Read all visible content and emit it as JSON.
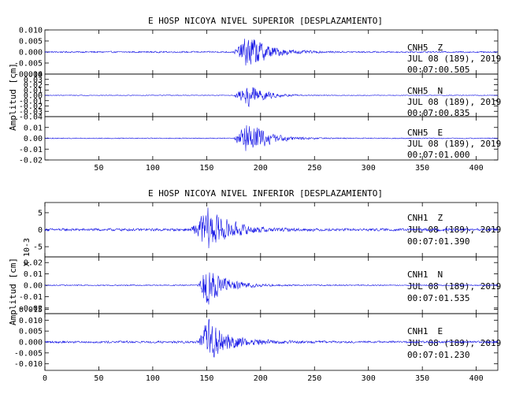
{
  "chart_data": [
    {
      "type": "line",
      "title": "E HOSP NICOYA NIVEL SUPERIOR [DESPLAZAMIENTO]",
      "ylabel": "Amplitud [cm]",
      "xlim": [
        0,
        420
      ],
      "x_ticks": [
        "50",
        "100",
        "150",
        "200",
        "250",
        "300",
        "350",
        "400"
      ],
      "colors": {
        "trace": "#1515e6",
        "axes": "#000000"
      },
      "panels": [
        {
          "name": "top-z",
          "ylim": [
            -0.01,
            0.01
          ],
          "y_ticks": [
            "0.010",
            "0.005",
            "0.000",
            "-0.005",
            "-0.010"
          ],
          "station": "CNH5",
          "component": "Z",
          "date": "JUL 08 (189), 2019",
          "time": "00:07:00.505",
          "event_x": 175,
          "peak_x": 190,
          "event_end": 240,
          "peak_amp": 0.0098,
          "noise_amp": 0.0004
        },
        {
          "name": "top-n",
          "ylim": [
            -0.04,
            0.04
          ],
          "y_ticks": [
            "0.04",
            "0.03",
            "0.02",
            "0.01",
            "0.00",
            "-0.01",
            "-0.02",
            "-0.03",
            "-0.04"
          ],
          "station": "CNH5",
          "component": "N",
          "date": "JUL 08 (189), 2019",
          "time": "00:07:00.835",
          "event_x": 175,
          "peak_x": 190,
          "event_end": 230,
          "peak_amp": 0.026,
          "noise_amp": 0.0008
        },
        {
          "name": "top-e",
          "ylim": [
            -0.02,
            0.02
          ],
          "y_ticks": [
            "0.01",
            "0.00",
            "-0.01",
            "-0.02"
          ],
          "station": "CNH5",
          "component": "E",
          "date": "JUL 08 (189), 2019",
          "time": "00:07:01.000",
          "event_x": 175,
          "peak_x": 188,
          "event_end": 240,
          "peak_amp": 0.019,
          "noise_amp": 0.0005
        }
      ]
    },
    {
      "type": "line",
      "title": "E HOSP NICOYA NIVEL INFERIOR [DESPLAZAMIENTO]",
      "ylabel": "Amplitud [cm]",
      "y_multiplier": "X 10-3",
      "xlim": [
        0,
        420
      ],
      "x_ticks": [
        "0",
        "50",
        "100",
        "150",
        "200",
        "250",
        "300",
        "350",
        "400"
      ],
      "colors": {
        "trace": "#1515e6",
        "axes": "#000000"
      },
      "panels": [
        {
          "name": "bottom-z",
          "ylim": [
            -8,
            8
          ],
          "y_ticks": [
            "5",
            "0",
            "-5"
          ],
          "station": "CNH1",
          "component": "Z",
          "date": "JUL 08 (189), 2019",
          "time": "00:07:01.390",
          "event_x": 135,
          "peak_x": 152,
          "event_end": 210,
          "peak_amp": 7.5,
          "noise_amp": 0.45
        },
        {
          "name": "bottom-n",
          "ylim": [
            -0.025,
            0.025
          ],
          "y_ticks": [
            "0.02",
            "0.01",
            "0.00",
            "-0.01",
            "-0.02"
          ],
          "station": "CNH1",
          "component": "N",
          "date": "JUL 08 (189), 2019",
          "time": "00:07:01.535",
          "event_x": 142,
          "peak_x": 148,
          "event_end": 200,
          "peak_amp": 0.023,
          "noise_amp": 0.0006
        },
        {
          "name": "bottom-e",
          "ylim": [
            -0.013,
            0.013
          ],
          "y_ticks": [
            "0.015",
            "0.010",
            "0.005",
            "0.000",
            "-0.005",
            "-0.010"
          ],
          "station": "CNH1",
          "component": "E",
          "date": "JUL 08 (189), 2019",
          "time": "00:07:01.230",
          "event_x": 142,
          "peak_x": 150,
          "event_end": 210,
          "peak_amp": 0.012,
          "noise_amp": 0.0006
        }
      ]
    }
  ]
}
